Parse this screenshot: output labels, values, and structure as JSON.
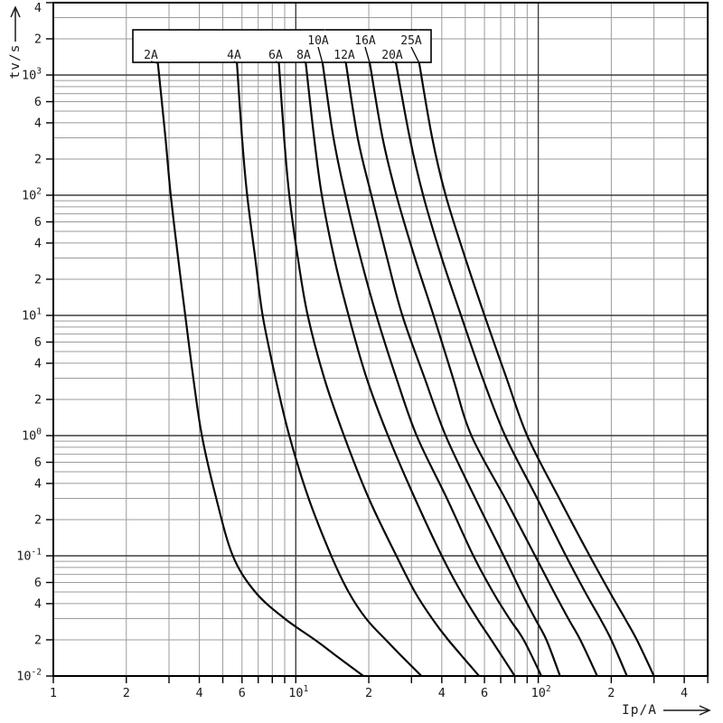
{
  "chart_data": {
    "type": "line",
    "scale": "log-log",
    "title": "",
    "xlabel": "Ip/A",
    "ylabel": "tv/s",
    "xlim": [
      1,
      500
    ],
    "ylim": [
      0.01,
      4000
    ],
    "grid": "full log grid, minor lines every mantissa, legend box top center",
    "colors": {
      "background": "#ffffff",
      "grid_minor": "#9b9b9b",
      "grid_major": "#3f3f3f",
      "frame": "#000000",
      "curve": "#0a0a0a",
      "text": "#1a1a1a"
    },
    "x_ticks_labeled": [
      {
        "v": 1,
        "label": "1"
      },
      {
        "v": 2,
        "label": "2"
      },
      {
        "v": 4,
        "label": "4"
      },
      {
        "v": 6,
        "label": "6"
      },
      {
        "v": 10,
        "label": "10^1"
      },
      {
        "v": 20,
        "label": "2"
      },
      {
        "v": 40,
        "label": "4"
      },
      {
        "v": 60,
        "label": "6"
      },
      {
        "v": 100,
        "label": "10^2"
      },
      {
        "v": 200,
        "label": "2"
      },
      {
        "v": 400,
        "label": "4"
      }
    ],
    "y_ticks_labeled": [
      {
        "v": 4000,
        "label": "4"
      },
      {
        "v": 2000,
        "label": "2"
      },
      {
        "v": 1000,
        "label": "10^3"
      },
      {
        "v": 600,
        "label": "6"
      },
      {
        "v": 400,
        "label": "4"
      },
      {
        "v": 200,
        "label": "2"
      },
      {
        "v": 100,
        "label": "10^2"
      },
      {
        "v": 60,
        "label": "6"
      },
      {
        "v": 40,
        "label": "4"
      },
      {
        "v": 20,
        "label": "2"
      },
      {
        "v": 10,
        "label": "10^1"
      },
      {
        "v": 6,
        "label": "6"
      },
      {
        "v": 4,
        "label": "4"
      },
      {
        "v": 2,
        "label": "2"
      },
      {
        "v": 1,
        "label": "10^0"
      },
      {
        "v": 0.6,
        "label": "6"
      },
      {
        "v": 0.4,
        "label": "4"
      },
      {
        "v": 0.2,
        "label": "2"
      },
      {
        "v": 0.1,
        "label": "10^-1"
      },
      {
        "v": 0.06,
        "label": "6"
      },
      {
        "v": 0.04,
        "label": "4"
      },
      {
        "v": 0.02,
        "label": "2"
      },
      {
        "v": 0.01,
        "label": "10^-2"
      }
    ],
    "legend_box": {
      "x1": 147,
      "y1": 33,
      "x2": 477,
      "y2": 69
    },
    "series": [
      {
        "name": "2A",
        "label_x": 167,
        "label_row": "bottom",
        "points_tI": [
          [
            1250,
            2.7
          ],
          [
            300,
            2.9
          ],
          [
            100,
            3.05
          ],
          [
            30,
            3.27
          ],
          [
            10,
            3.5
          ],
          [
            3,
            3.78
          ],
          [
            1,
            4.1
          ],
          [
            0.3,
            4.7
          ],
          [
            0.1,
            5.5
          ],
          [
            0.05,
            6.8
          ],
          [
            0.03,
            9.0
          ],
          [
            0.02,
            12.0
          ],
          [
            0.015,
            14.5
          ],
          [
            0.01,
            19.0
          ]
        ]
      },
      {
        "name": "4A",
        "label_x": 259,
        "label_row": "bottom",
        "points_tI": [
          [
            1250,
            5.72
          ],
          [
            300,
            6.0
          ],
          [
            100,
            6.3
          ],
          [
            30,
            6.8
          ],
          [
            10,
            7.3
          ],
          [
            3,
            8.25
          ],
          [
            1,
            9.4
          ],
          [
            0.3,
            11.3
          ],
          [
            0.1,
            14.0
          ],
          [
            0.05,
            16.5
          ],
          [
            0.03,
            19.5
          ],
          [
            0.02,
            23.5
          ],
          [
            0.015,
            27.0
          ],
          [
            0.01,
            33.0
          ]
        ]
      },
      {
        "name": "6A",
        "label_x": 305,
        "label_row": "bottom",
        "points_tI": [
          [
            1250,
            8.52
          ],
          [
            300,
            8.95
          ],
          [
            100,
            9.4
          ],
          [
            30,
            10.2
          ],
          [
            10,
            11.2
          ],
          [
            3,
            13.1
          ],
          [
            1,
            15.8
          ],
          [
            0.3,
            20.0
          ],
          [
            0.1,
            26.0
          ],
          [
            0.05,
            31.0
          ],
          [
            0.03,
            36.5
          ],
          [
            0.02,
            42.5
          ],
          [
            0.01,
            57.0
          ]
        ]
      },
      {
        "name": "8A",
        "label_x": 336,
        "label_row": "bottom",
        "points_tI": [
          [
            1250,
            11.0
          ],
          [
            300,
            11.9
          ],
          [
            100,
            12.8
          ],
          [
            30,
            14.4
          ],
          [
            10,
            16.5
          ],
          [
            3,
            19.6
          ],
          [
            1,
            24.0
          ],
          [
            0.3,
            31.0
          ],
          [
            0.1,
            40.0
          ],
          [
            0.05,
            48.0
          ],
          [
            0.03,
            56.0
          ],
          [
            0.02,
            64.0
          ],
          [
            0.01,
            80.0
          ]
        ]
      },
      {
        "name": "10A",
        "label_x": 352,
        "label_row": "top",
        "points_tI": [
          [
            1250,
            12.9
          ],
          [
            300,
            14.3
          ],
          [
            100,
            16.0
          ],
          [
            30,
            18.5
          ],
          [
            10,
            21.5
          ],
          [
            3,
            26.0
          ],
          [
            1,
            31.5
          ],
          [
            0.3,
            42.0
          ],
          [
            0.1,
            54.0
          ],
          [
            0.05,
            65.0
          ],
          [
            0.03,
            76.0
          ],
          [
            0.02,
            87.0
          ],
          [
            0.01,
            103
          ]
        ]
      },
      {
        "name": "12A",
        "label_x": 381,
        "label_row": "bottom",
        "points_tI": [
          [
            1250,
            16.1
          ],
          [
            300,
            18.0
          ],
          [
            100,
            20.5
          ],
          [
            30,
            23.8
          ],
          [
            10,
            27.5
          ],
          [
            3,
            34.0
          ],
          [
            1,
            41.5
          ],
          [
            0.3,
            55.0
          ],
          [
            0.1,
            72.0
          ],
          [
            0.05,
            85.0
          ],
          [
            0.03,
            97.0
          ],
          [
            0.02,
            108
          ],
          [
            0.01,
            123
          ]
        ]
      },
      {
        "name": "16A",
        "label_x": 404,
        "label_row": "top",
        "points_tI": [
          [
            1250,
            20.2
          ],
          [
            300,
            22.8
          ],
          [
            100,
            26.0
          ],
          [
            30,
            31.0
          ],
          [
            10,
            37.0
          ],
          [
            3,
            44.5
          ],
          [
            1,
            53.0
          ],
          [
            0.3,
            73.0
          ],
          [
            0.1,
            97.0
          ],
          [
            0.05,
            116
          ],
          [
            0.03,
            133
          ],
          [
            0.02,
            149
          ],
          [
            0.01,
            175
          ]
        ]
      },
      {
        "name": "20A",
        "label_x": 434,
        "label_row": "bottom",
        "points_tI": [
          [
            1250,
            25.9
          ],
          [
            300,
            29.5
          ],
          [
            100,
            33.5
          ],
          [
            30,
            40.0
          ],
          [
            10,
            48.0
          ],
          [
            3,
            59.0
          ],
          [
            1,
            73.0
          ],
          [
            0.3,
            99.0
          ],
          [
            0.1,
            130
          ],
          [
            0.05,
            156
          ],
          [
            0.03,
            180
          ],
          [
            0.02,
            200
          ],
          [
            0.01,
            232
          ]
        ]
      },
      {
        "name": "25A",
        "label_x": 455,
        "label_row": "top",
        "points_tI": [
          [
            1250,
            32.3
          ],
          [
            300,
            36.5
          ],
          [
            100,
            41.5
          ],
          [
            30,
            50.0
          ],
          [
            10,
            60.0
          ],
          [
            3,
            74.0
          ],
          [
            1,
            90.0
          ],
          [
            0.3,
            122
          ],
          [
            0.1,
            163
          ],
          [
            0.05,
            197
          ],
          [
            0.03,
            228
          ],
          [
            0.02,
            255
          ],
          [
            0.01,
            300
          ]
        ]
      }
    ]
  }
}
